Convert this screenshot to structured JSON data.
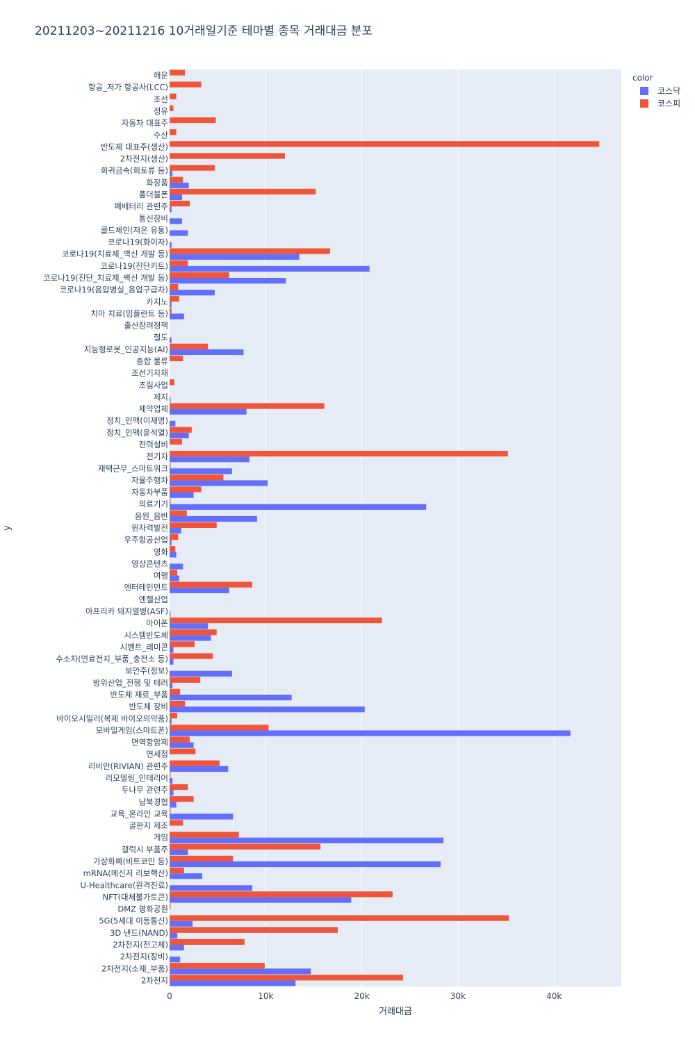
{
  "chart_data": {
    "type": "bar",
    "orientation": "horizontal",
    "barmode": "group",
    "title": "20211203~20211216 10거래일기준 테마별 종목 거래대금 분포",
    "xlabel": "거래대금",
    "ylabel": "y",
    "xlim": [
      0,
      47000
    ],
    "x_ticks": [
      0,
      10000,
      20000,
      30000,
      40000
    ],
    "x_tick_labels": [
      "0",
      "10k",
      "20k",
      "30k",
      "40k"
    ],
    "grid": true,
    "legend": {
      "title": "color",
      "placement": "top-right"
    },
    "colors": {
      "kosdaq": "#636efa",
      "kospi": "#ef553b",
      "plot_bg": "#e5ecf6",
      "grid": "#ffffff"
    },
    "categories": [
      "해운",
      "항공_저가 항공사(LCC)",
      "조선",
      "정유",
      "자동차 대표주",
      "수산",
      "반도체 대표주(생산)",
      "2차전지(생산)",
      "희귀금속(희토류 등)",
      "화장품",
      "폴더블폰",
      "폐배터리 관련주",
      "통신장비",
      "콜드체인(저온 유통)",
      "코로나19(화이자)",
      "코로나19(치료제_백신 개발 등)",
      "코로나19(진단키트)",
      "코로나19(진단_치료제_백신 개발 등)",
      "코로나19(음압병실_음압구급차)",
      "카지노",
      "치아 치료(임플란트 등)",
      "출산장려정책",
      "철도",
      "지능형로봇_인공지능(AI)",
      "종합 물류",
      "조선기자재",
      "조림사업",
      "제지",
      "제약업체",
      "정치_인맥(이재명)",
      "정치_인맥(윤석열)",
      "전력설비",
      "전기차",
      "재택근무_스마트워크",
      "자율주행차",
      "자동차부품",
      "의료기기",
      "음원_음반",
      "원자력발전",
      "우주항공산업",
      "영화",
      "영상콘텐츠",
      "여행",
      "엔터테인먼트",
      "엔젤산업",
      "아프리카 돼지열병(ASF)",
      "아이폰",
      "시스템반도체",
      "시멘트_레미콘",
      "수소차(연료전지_부품_충전소 등)",
      "보안주(정보)",
      "방위산업_전쟁 및 테러",
      "반도체 재료_부품",
      "반도체 장비",
      "바이오시밀러(복제 바이오의약품)",
      "모바일게임(스마트폰)",
      "면역항암제",
      "면세점",
      "리비안(RIVIAN) 관련주",
      "리모델링_인테리어",
      "두나무 관련주",
      "남북경협",
      "교육_온라인 교육",
      "골판지 제조",
      "게임",
      "갤럭시 부품주",
      "가상화폐(비트코인 등)",
      "mRNA(메신저 리보핵산)",
      "U-Healthcare(원격진료)",
      "NFT(대체불가토큰)",
      "DMZ 평화공원",
      "5G(5세대 이동통신)",
      "3D 낸드(NAND)",
      "2차전지(전고체)",
      "2차전지(장비)",
      "2차전지(소재_부품)",
      "2차전지"
    ],
    "series": [
      {
        "name": "코스닥",
        "values": [
          0,
          0,
          0,
          0,
          0,
          0,
          0,
          0,
          300,
          2000,
          1300,
          200,
          1300,
          1900,
          200,
          13500,
          20800,
          12100,
          4700,
          200,
          1500,
          0,
          200,
          7700,
          0,
          0,
          0,
          100,
          8000,
          600,
          2000,
          0,
          8300,
          6500,
          10200,
          2500,
          26700,
          9100,
          1200,
          200,
          700,
          1400,
          1000,
          6200,
          0,
          100,
          4000,
          4300,
          400,
          400,
          6500,
          300,
          12700,
          20300,
          200,
          41700,
          2500,
          0,
          6100,
          300,
          400,
          700,
          6600,
          0,
          28500,
          1900,
          28200,
          3400,
          8600,
          18900,
          0,
          2400,
          800,
          1500,
          1100,
          14700,
          13100
        ]
      },
      {
        "name": "코스피",
        "values": [
          1600,
          3300,
          700,
          400,
          4800,
          700,
          44700,
          12000,
          4700,
          1400,
          15200,
          2100,
          0,
          0,
          0,
          16700,
          1900,
          6200,
          900,
          1000,
          200,
          0,
          0,
          4000,
          1400,
          0,
          500,
          0,
          16100,
          0,
          2300,
          1300,
          35200,
          100,
          5600,
          3300,
          100,
          1800,
          4900,
          900,
          600,
          0,
          800,
          8600,
          0,
          0,
          22100,
          4900,
          2600,
          4500,
          0,
          3200,
          1100,
          1600,
          800,
          10300,
          2100,
          2700,
          5200,
          100,
          1900,
          2500,
          100,
          1400,
          7200,
          15700,
          6600,
          1500,
          0,
          23200,
          100,
          35300,
          17500,
          7800,
          0,
          9900,
          24300
        ]
      }
    ]
  }
}
